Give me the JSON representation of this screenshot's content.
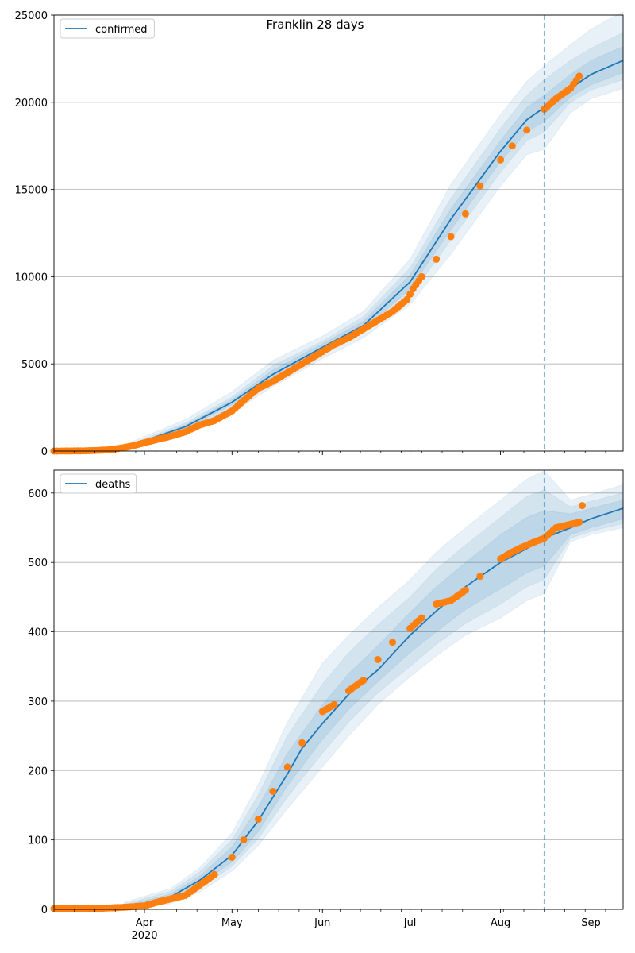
{
  "figure": {
    "title": "Franklin 28 days"
  },
  "chart_data": [
    {
      "type": "line",
      "legend": {
        "label": "confirmed",
        "placement": "top-left"
      },
      "ylim": [
        0,
        25000
      ],
      "yticks": [
        0,
        5000,
        10000,
        15000,
        20000,
        25000
      ],
      "grid": "y",
      "forecast_start": "2020-08-16",
      "colors": {
        "line": "#1f77b4",
        "points": "#ff7f0e",
        "band": "#1f77b4"
      },
      "model_x": [
        "2020-03-01",
        "2020-03-15",
        "2020-03-25",
        "2020-04-01",
        "2020-04-15",
        "2020-05-01",
        "2020-05-15",
        "2020-06-01",
        "2020-06-15",
        "2020-07-01",
        "2020-07-15",
        "2020-08-01",
        "2020-08-10",
        "2020-08-16",
        "2020-08-25",
        "2020-09-01",
        "2020-09-12"
      ],
      "model_y": [
        0,
        10,
        150,
        600,
        1400,
        2800,
        4400,
        5950,
        7200,
        9700,
        13300,
        17200,
        19000,
        19700,
        20800,
        21600,
        22400
      ],
      "bands_x": [
        "2020-03-25",
        "2020-04-15",
        "2020-05-01",
        "2020-05-15",
        "2020-06-01",
        "2020-06-15",
        "2020-07-01",
        "2020-07-15",
        "2020-08-01",
        "2020-08-10",
        "2020-08-16",
        "2020-08-25",
        "2020-09-01",
        "2020-09-12"
      ],
      "band_outer_upper": [
        350,
        1800,
        3400,
        5200,
        6600,
        8000,
        11000,
        15300,
        19300,
        21200,
        22100,
        23300,
        24200,
        25200
      ],
      "band_outer_lower": [
        40,
        1000,
        2200,
        3700,
        5300,
        6500,
        8400,
        11300,
        15200,
        17000,
        17300,
        19400,
        20200,
        20800
      ],
      "band_mid_upper": [
        250,
        1600,
        3100,
        4900,
        6300,
        7700,
        10500,
        14500,
        18500,
        20400,
        21300,
        22400,
        23100,
        24000
      ],
      "band_mid_lower": [
        70,
        1150,
        2500,
        4000,
        5600,
        6800,
        8900,
        12100,
        16000,
        17800,
        18300,
        20000,
        20700,
        21300
      ],
      "band_inner_upper": [
        190,
        1500,
        2950,
        4650,
        6150,
        7450,
        10100,
        13900,
        17800,
        19700,
        20400,
        21600,
        22400,
        23200
      ],
      "band_inner_lower": [
        110,
        1300,
        2650,
        4150,
        5750,
        6950,
        9300,
        12700,
        16600,
        18300,
        18900,
        20300,
        21000,
        21700
      ],
      "observed_x": [
        "2020-03-01",
        "2020-03-10",
        "2020-03-15",
        "2020-03-20",
        "2020-03-25",
        "2020-03-28",
        "2020-04-01",
        "2020-04-05",
        "2020-04-10",
        "2020-04-15",
        "2020-04-20",
        "2020-04-25",
        "2020-05-01",
        "2020-05-05",
        "2020-05-10",
        "2020-05-15",
        "2020-05-20",
        "2020-05-25",
        "2020-06-01",
        "2020-06-05",
        "2020-06-10",
        "2020-06-15",
        "2020-06-20",
        "2020-06-25",
        "2020-06-30",
        "2020-07-02",
        "2020-07-05",
        "2020-07-10",
        "2020-07-15",
        "2020-07-20",
        "2020-07-25",
        "2020-08-01",
        "2020-08-05",
        "2020-08-10",
        "2020-08-16",
        "2020-08-20",
        "2020-08-25",
        "2020-08-28"
      ],
      "observed_y": [
        0,
        10,
        30,
        80,
        200,
        300,
        480,
        650,
        850,
        1100,
        1500,
        1750,
        2300,
        2900,
        3600,
        4000,
        4500,
        5000,
        5700,
        6100,
        6500,
        7000,
        7500,
        8000,
        8700,
        9300,
        10000,
        11000,
        12300,
        13600,
        15200,
        16700,
        17500,
        18400,
        19600,
        20200,
        20800,
        21500
      ],
      "x_ticks": [
        "Apr",
        "May",
        "Jun",
        "Jul",
        "Aug",
        "Sep"
      ],
      "x_year_label": "2020"
    },
    {
      "type": "line",
      "legend": {
        "label": "deaths",
        "placement": "top-left"
      },
      "ylim": [
        0,
        633
      ],
      "yticks": [
        0,
        100,
        200,
        300,
        400,
        500,
        600
      ],
      "grid": "y",
      "forecast_start": "2020-08-16",
      "colors": {
        "line": "#1f77b4",
        "points": "#ff7f0e",
        "band": "#1f77b4"
      },
      "model_x": [
        "2020-03-01",
        "2020-03-20",
        "2020-03-25",
        "2020-04-01",
        "2020-04-10",
        "2020-04-20",
        "2020-05-01",
        "2020-05-10",
        "2020-05-20",
        "2020-05-25",
        "2020-06-01",
        "2020-06-10",
        "2020-06-20",
        "2020-07-01",
        "2020-07-10",
        "2020-07-20",
        "2020-08-01",
        "2020-08-10",
        "2020-08-16",
        "2020-08-25",
        "2020-09-01",
        "2020-09-12"
      ],
      "model_y": [
        0,
        2,
        3,
        7,
        18,
        42,
        78,
        128,
        195,
        232,
        268,
        310,
        345,
        395,
        430,
        465,
        500,
        520,
        535,
        550,
        563,
        578
      ],
      "bands_x": [
        "2020-03-25",
        "2020-04-10",
        "2020-04-20",
        "2020-05-01",
        "2020-05-10",
        "2020-05-20",
        "2020-06-01",
        "2020-06-10",
        "2020-06-20",
        "2020-07-01",
        "2020-07-10",
        "2020-07-20",
        "2020-08-01",
        "2020-08-10",
        "2020-08-16",
        "2020-08-25",
        "2020-09-01",
        "2020-09-12"
      ],
      "band_outer_upper": [
        10,
        30,
        60,
        110,
        180,
        270,
        355,
        395,
        435,
        475,
        515,
        550,
        590,
        620,
        632,
        590,
        598,
        612
      ],
      "band_outer_lower": [
        1,
        8,
        25,
        55,
        92,
        145,
        205,
        250,
        295,
        335,
        365,
        395,
        420,
        445,
        455,
        530,
        540,
        550
      ],
      "band_mid_upper": [
        7,
        26,
        54,
        100,
        165,
        250,
        325,
        370,
        410,
        450,
        490,
        525,
        565,
        595,
        605,
        580,
        588,
        600
      ],
      "band_mid_lower": [
        2,
        11,
        30,
        62,
        102,
        162,
        225,
        270,
        312,
        350,
        382,
        412,
        440,
        465,
        475,
        535,
        545,
        556
      ],
      "band_inner_upper": [
        5,
        22,
        48,
        90,
        148,
        225,
        295,
        340,
        380,
        428,
        465,
        500,
        540,
        565,
        575,
        570,
        578,
        590
      ],
      "band_inner_lower": [
        3,
        14,
        36,
        68,
        112,
        178,
        245,
        288,
        328,
        370,
        400,
        432,
        462,
        485,
        495,
        540,
        550,
        563
      ],
      "observed_x": [
        "2020-03-01",
        "2020-03-15",
        "2020-03-20",
        "2020-03-25",
        "2020-04-01",
        "2020-04-05",
        "2020-04-10",
        "2020-04-15",
        "2020-04-20",
        "2020-04-25",
        "2020-05-01",
        "2020-05-05",
        "2020-05-10",
        "2020-05-15",
        "2020-05-20",
        "2020-05-25",
        "2020-06-01",
        "2020-06-05",
        "2020-06-10",
        "2020-06-15",
        "2020-06-20",
        "2020-06-25",
        "2020-07-01",
        "2020-07-05",
        "2020-07-10",
        "2020-07-15",
        "2020-07-20",
        "2020-07-25",
        "2020-08-01",
        "2020-08-05",
        "2020-08-10",
        "2020-08-16",
        "2020-08-20",
        "2020-08-25",
        "2020-08-28",
        "2020-08-29"
      ],
      "observed_y": [
        1,
        1,
        2,
        3,
        5,
        10,
        15,
        20,
        35,
        50,
        75,
        100,
        130,
        170,
        205,
        240,
        285,
        295,
        315,
        330,
        360,
        385,
        405,
        420,
        440,
        445,
        460,
        480,
        505,
        515,
        525,
        535,
        550,
        555,
        558,
        582
      ],
      "x_ticks": [
        "Apr",
        "May",
        "Jun",
        "Jul",
        "Aug",
        "Sep"
      ],
      "x_year_label": "2020"
    }
  ]
}
